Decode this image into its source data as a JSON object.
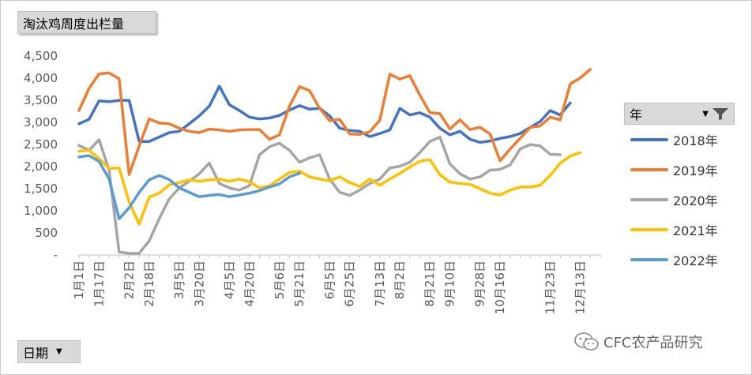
{
  "title_button": {
    "label": "淘汰鸡周度出栏量"
  },
  "axis_button": {
    "label": "日期",
    "arrow": "▼"
  },
  "legend": {
    "title": "年",
    "arrow": "▼",
    "filter_icon": "filter-icon"
  },
  "watermark": {
    "text": "CFC农产品研究",
    "icon": "wechat-icon"
  },
  "chart_data": {
    "type": "line",
    "title": "淘汰鸡周度出栏量",
    "xlabel": "日期",
    "ylabel": "",
    "ylim": [
      0,
      4500
    ],
    "yticks": [
      0,
      500,
      1000,
      1500,
      2000,
      2500,
      3000,
      3500,
      4000,
      4500
    ],
    "ytick_labels": [
      "-",
      "500",
      "1,000",
      "1,500",
      "2,000",
      "2,500",
      "3,000",
      "3,500",
      "4,000",
      "4,500"
    ],
    "grid": false,
    "legend_position": "right",
    "x_count": 53,
    "x_tick_labels": [
      "1月1日",
      "1月17日",
      "2月2日",
      "2月18日",
      "3月5日",
      "3月20日",
      "4月5日",
      "4月20日",
      "5月6日",
      "5月21日",
      "6月5日",
      "6月25日",
      "7月13日",
      "8月2日",
      "8月21日",
      "9月10日",
      "9月28日",
      "10月16日",
      "11月23日",
      "12月13日"
    ],
    "x_tick_positions": [
      0,
      2,
      5,
      7,
      10,
      12,
      15,
      17,
      20,
      22,
      25,
      27,
      30,
      32,
      35,
      37,
      40,
      42,
      47,
      50
    ],
    "series": [
      {
        "name": "2018年",
        "color": "#4472c4",
        "values": [
          2950,
          3050,
          3470,
          3450,
          3480,
          3480,
          2550,
          2550,
          2650,
          2750,
          2780,
          2950,
          3130,
          3350,
          3800,
          3380,
          3250,
          3100,
          3060,
          3080,
          3140,
          3260,
          3360,
          3280,
          3300,
          3130,
          2850,
          2800,
          2780,
          2660,
          2730,
          2810,
          3300,
          3150,
          3200,
          3100,
          2850,
          2700,
          2780,
          2600,
          2530,
          2560,
          2620,
          2660,
          2730,
          2870,
          3000,
          3250,
          3150,
          3420
        ]
      },
      {
        "name": "2019年",
        "color": "#ed7d31",
        "values": [
          3250,
          3750,
          4080,
          4100,
          3970,
          1800,
          2450,
          3060,
          2970,
          2950,
          2850,
          2780,
          2750,
          2830,
          2810,
          2780,
          2810,
          2820,
          2820,
          2600,
          2700,
          3350,
          3790,
          3700,
          3300,
          3020,
          3050,
          2720,
          2710,
          2770,
          3030,
          4070,
          3960,
          4040,
          3600,
          3200,
          3180,
          2830,
          3040,
          2820,
          2870,
          2720,
          2110,
          2380,
          2620,
          2870,
          2900,
          3100,
          3040,
          3850,
          3990,
          4180
        ]
      },
      {
        "name": "2020年",
        "color": "#a5a5a5",
        "values": [
          2460,
          2350,
          2590,
          1900,
          50,
          20,
          20,
          300,
          800,
          1250,
          1500,
          1650,
          1820,
          2060,
          1600,
          1500,
          1450,
          1550,
          2250,
          2430,
          2510,
          2350,
          2080,
          2180,
          2250,
          1700,
          1400,
          1330,
          1450,
          1600,
          1700,
          1950,
          1990,
          2080,
          2300,
          2550,
          2650,
          2040,
          1820,
          1700,
          1750,
          1900,
          1920,
          2020,
          2380,
          2480,
          2450,
          2260,
          2250
        ]
      },
      {
        "name": "2021年",
        "color": "#ffc000",
        "values": [
          2330,
          2350,
          2160,
          1940,
          1950,
          1180,
          680,
          1290,
          1380,
          1570,
          1620,
          1680,
          1650,
          1680,
          1700,
          1650,
          1700,
          1640,
          1500,
          1550,
          1700,
          1850,
          1880,
          1750,
          1700,
          1660,
          1750,
          1620,
          1530,
          1700,
          1560,
          1700,
          1830,
          1970,
          2100,
          2140,
          1800,
          1630,
          1600,
          1580,
          1480,
          1380,
          1340,
          1450,
          1520,
          1520,
          1560,
          1780,
          2060,
          2220,
          2300
        ]
      },
      {
        "name": "2022年",
        "color": "#5b9bd5",
        "values": [
          2200,
          2230,
          2100,
          1700,
          800,
          1050,
          1400,
          1680,
          1780,
          1690,
          1500,
          1400,
          1300,
          1330,
          1350,
          1300,
          1340,
          1380,
          1440,
          1520,
          1590,
          1750,
          1830
        ]
      }
    ]
  }
}
